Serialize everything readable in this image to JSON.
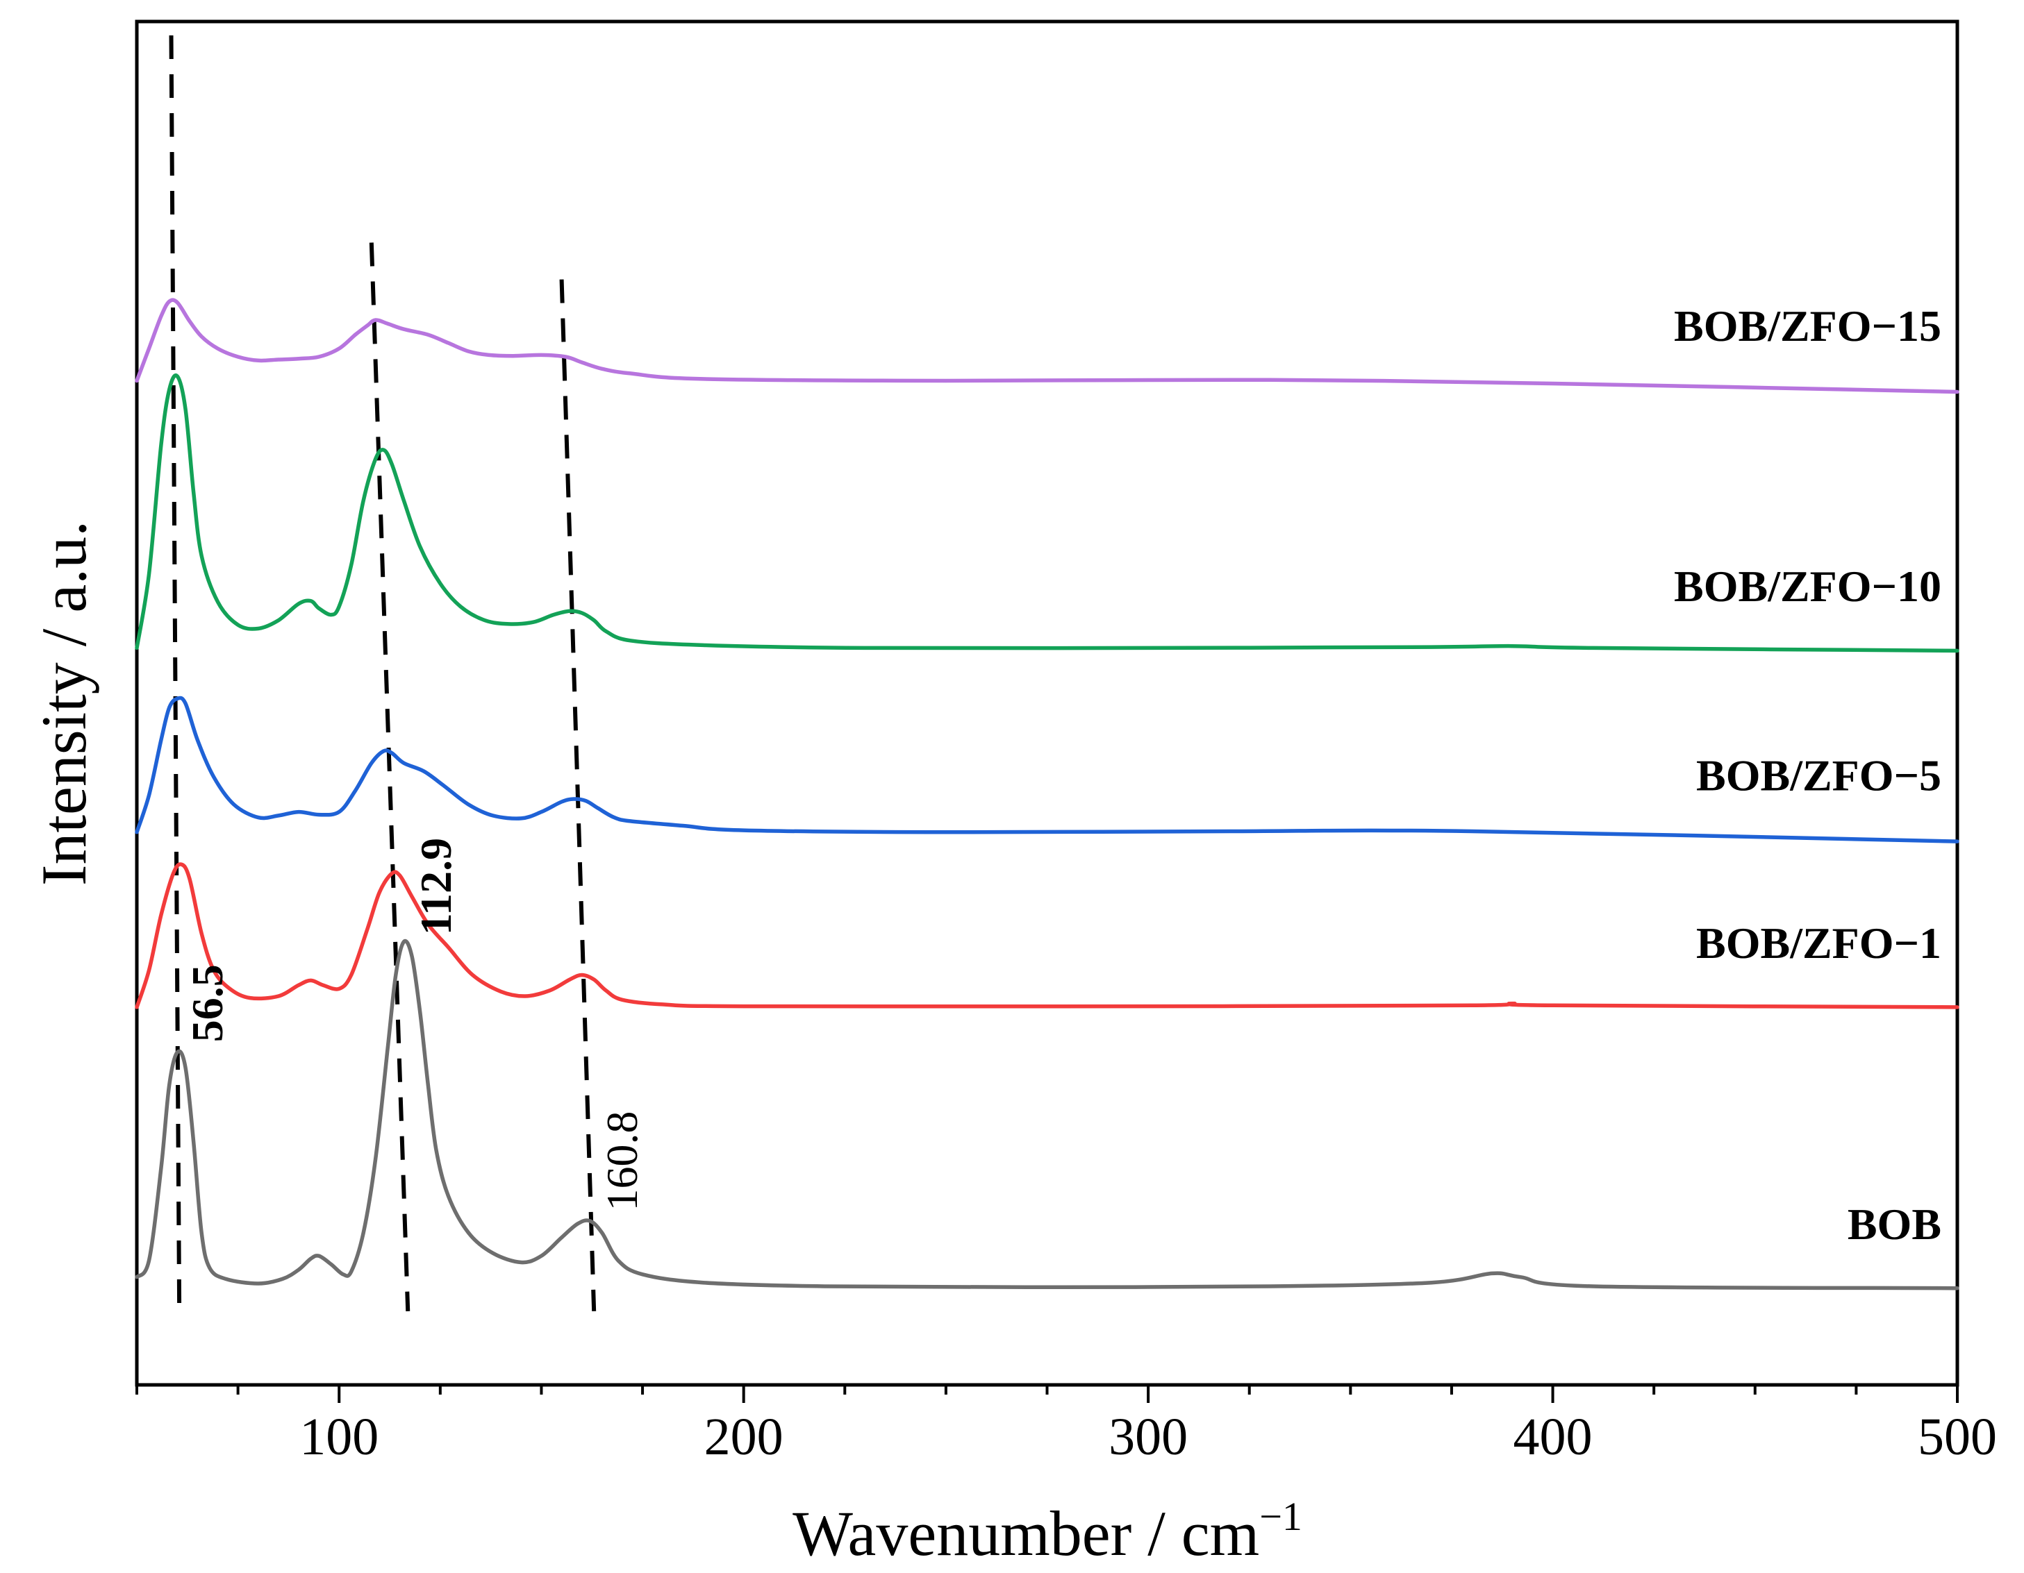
{
  "chart_data": {
    "type": "line",
    "xlabel": "Wavenumber / cm",
    "xlabel_superscript": "−1",
    "ylabel": "Intensity / a.u.",
    "xlim": [
      50,
      500
    ],
    "xticks": [
      100,
      200,
      300,
      400,
      500
    ],
    "xtick_labels": [
      "100",
      "200",
      "300",
      "400",
      "500"
    ],
    "y_ticks_shown": false,
    "series": [
      {
        "name": "BOB",
        "color": "#6e6e6e",
        "offset": 0.5,
        "points": [
          [
            50,
            1.2
          ],
          [
            53,
            3
          ],
          [
            56,
            13
          ],
          [
            58,
            22
          ],
          [
            60,
            25.6
          ],
          [
            62,
            24
          ],
          [
            64,
            16
          ],
          [
            66,
            6
          ],
          [
            68,
            2.2
          ],
          [
            72,
            1
          ],
          [
            80,
            0.5
          ],
          [
            86,
            1
          ],
          [
            90,
            2
          ],
          [
            93,
            3.2
          ],
          [
            95,
            3.5
          ],
          [
            98,
            2.6
          ],
          [
            101,
            1.5
          ],
          [
            103,
            1.8
          ],
          [
            106,
            6
          ],
          [
            109,
            14
          ],
          [
            112,
            26
          ],
          [
            114,
            34
          ],
          [
            116,
            37.6
          ],
          [
            118,
            36
          ],
          [
            120,
            30
          ],
          [
            122,
            22
          ],
          [
            124,
            15
          ],
          [
            127,
            10
          ],
          [
            132,
            6
          ],
          [
            138,
            3.8
          ],
          [
            145,
            2.8
          ],
          [
            150,
            3.5
          ],
          [
            155,
            5.5
          ],
          [
            159,
            7
          ],
          [
            162,
            7.3
          ],
          [
            165,
            6
          ],
          [
            169,
            3
          ],
          [
            175,
            1.5
          ],
          [
            190,
            0.6
          ],
          [
            220,
            0.2
          ],
          [
            270,
            0.1
          ],
          [
            330,
            0.2
          ],
          [
            370,
            0.6
          ],
          [
            385,
            1.6
          ],
          [
            392,
            1.2
          ],
          [
            410,
            0.2
          ],
          [
            500,
            0
          ]
        ]
      },
      {
        "name": "BOB/ZFO−1",
        "color": "#f23b3b",
        "offset": 31,
        "points": [
          [
            50,
            0
          ],
          [
            53,
            4
          ],
          [
            56,
            10
          ],
          [
            59,
            14.5
          ],
          [
            61,
            15.5
          ],
          [
            63,
            14
          ],
          [
            66,
            8
          ],
          [
            69,
            4
          ],
          [
            73,
            2
          ],
          [
            78,
            1
          ],
          [
            85,
            1.2
          ],
          [
            90,
            2.4
          ],
          [
            93,
            2.9
          ],
          [
            96,
            2.4
          ],
          [
            100,
            2
          ],
          [
            103,
            3.5
          ],
          [
            107,
            8.5
          ],
          [
            110,
            12.5
          ],
          [
            113,
            14.5
          ],
          [
            115,
            14.3
          ],
          [
            118,
            12
          ],
          [
            122,
            9
          ],
          [
            127,
            6.5
          ],
          [
            133,
            3.5
          ],
          [
            140,
            1.7
          ],
          [
            146,
            1.2
          ],
          [
            152,
            1.8
          ],
          [
            157,
            3
          ],
          [
            160,
            3.5
          ],
          [
            163,
            3
          ],
          [
            166,
            1.8
          ],
          [
            170,
            0.8
          ],
          [
            180,
            0.3
          ],
          [
            200,
            0.1
          ],
          [
            300,
            0.1
          ],
          [
            380,
            0.2
          ],
          [
            390,
            0.4
          ],
          [
            400,
            0.2
          ],
          [
            500,
            0
          ]
        ]
      },
      {
        "name": "BOB/ZFO−5",
        "color": "#1f62d6",
        "offset": 50,
        "points": [
          [
            50,
            0
          ],
          [
            53,
            4
          ],
          [
            56,
            10
          ],
          [
            58,
            13.5
          ],
          [
            60,
            14.5
          ],
          [
            62,
            14
          ],
          [
            65,
            10
          ],
          [
            69,
            6
          ],
          [
            74,
            3
          ],
          [
            80,
            1.6
          ],
          [
            85,
            1.8
          ],
          [
            90,
            2.2
          ],
          [
            95,
            1.9
          ],
          [
            100,
            2.2
          ],
          [
            104,
            4.5
          ],
          [
            108,
            7.5
          ],
          [
            111,
            8.8
          ],
          [
            113,
            8.6
          ],
          [
            116,
            7.5
          ],
          [
            121,
            6.6
          ],
          [
            126,
            5
          ],
          [
            132,
            3
          ],
          [
            138,
            1.8
          ],
          [
            145,
            1.5
          ],
          [
            150,
            2.2
          ],
          [
            155,
            3.3
          ],
          [
            158,
            3.6
          ],
          [
            161,
            3.4
          ],
          [
            164,
            2.6
          ],
          [
            168,
            1.6
          ],
          [
            172,
            1.2
          ],
          [
            185,
            0.7
          ],
          [
            200,
            0.2
          ],
          [
            250,
            0
          ],
          [
            320,
            0.1
          ],
          [
            380,
            0.1
          ],
          [
            500,
            -1
          ]
        ]
      },
      {
        "name": "BOB/ZFO−10",
        "color": "#13a257",
        "offset": 70,
        "points": [
          [
            50,
            0
          ],
          [
            53,
            8
          ],
          [
            56,
            22
          ],
          [
            58,
            28
          ],
          [
            60,
            29.5
          ],
          [
            62,
            26
          ],
          [
            64,
            17
          ],
          [
            66,
            10
          ],
          [
            70,
            5
          ],
          [
            75,
            2.5
          ],
          [
            80,
            2.1
          ],
          [
            85,
            3
          ],
          [
            90,
            4.8
          ],
          [
            93,
            5.1
          ],
          [
            95,
            4.3
          ],
          [
            98,
            3.6
          ],
          [
            100,
            4.5
          ],
          [
            103,
            9
          ],
          [
            106,
            16
          ],
          [
            109,
            20.5
          ],
          [
            111,
            21.5
          ],
          [
            113,
            20
          ],
          [
            116,
            16
          ],
          [
            120,
            11
          ],
          [
            125,
            7
          ],
          [
            130,
            4.5
          ],
          [
            136,
            3
          ],
          [
            142,
            2.6
          ],
          [
            148,
            2.8
          ],
          [
            153,
            3.6
          ],
          [
            157,
            4
          ],
          [
            160,
            3.8
          ],
          [
            163,
            3
          ],
          [
            166,
            1.8
          ],
          [
            172,
            0.8
          ],
          [
            190,
            0.3
          ],
          [
            230,
            0
          ],
          [
            300,
            0
          ],
          [
            370,
            0.1
          ],
          [
            390,
            0.2
          ],
          [
            410,
            0
          ],
          [
            500,
            -0.3
          ]
        ]
      },
      {
        "name": "BOB/ZFO−15",
        "color": "#b775de",
        "offset": 99,
        "points": [
          [
            50,
            0
          ],
          [
            53,
            3.5
          ],
          [
            56,
            7
          ],
          [
            58,
            8.6
          ],
          [
            60,
            8.5
          ],
          [
            63,
            6.5
          ],
          [
            66,
            4.8
          ],
          [
            70,
            3.5
          ],
          [
            75,
            2.6
          ],
          [
            80,
            2.2
          ],
          [
            85,
            2.3
          ],
          [
            90,
            2.4
          ],
          [
            95,
            2.6
          ],
          [
            100,
            3.5
          ],
          [
            104,
            5
          ],
          [
            107,
            6
          ],
          [
            109,
            6.6
          ],
          [
            112,
            6.2
          ],
          [
            116,
            5.6
          ],
          [
            122,
            5
          ],
          [
            127,
            4.1
          ],
          [
            132,
            3.2
          ],
          [
            137,
            2.8
          ],
          [
            143,
            2.7
          ],
          [
            150,
            2.8
          ],
          [
            156,
            2.6
          ],
          [
            160,
            2
          ],
          [
            165,
            1.3
          ],
          [
            172,
            0.8
          ],
          [
            190,
            0.2
          ],
          [
            250,
            0
          ],
          [
            330,
            0.1
          ],
          [
            400,
            -0.3
          ],
          [
            500,
            -1.2
          ]
        ]
      }
    ],
    "peak_guides": [
      {
        "label": "56.5",
        "label_bold": true,
        "x_top": 58.5,
        "x_bottom": 60.5
      },
      {
        "label": "112.9",
        "label_bold": true,
        "x_top": 108,
        "x_bottom": 117
      },
      {
        "label": "160.8",
        "label_bold": false,
        "x_top": 155,
        "x_bottom": 163
      }
    ]
  }
}
